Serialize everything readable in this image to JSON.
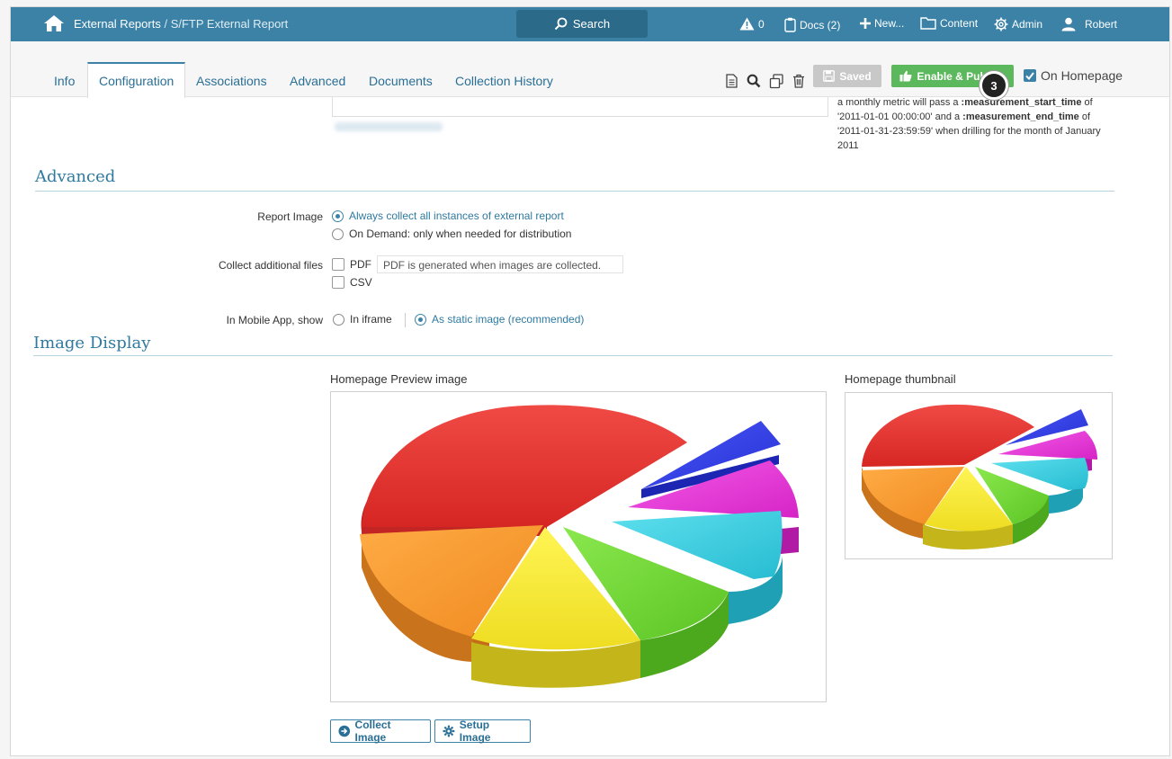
{
  "topbar": {
    "breadcrumb_root": "External Reports",
    "breadcrumb_sep": "/",
    "breadcrumb_current": "S/FTP External Report",
    "search_label": "Search",
    "alerts_count": "0",
    "docs_label": "Docs (2)",
    "new_label": "New...",
    "content_label": "Content",
    "admin_label": "Admin",
    "user_label": "Robert"
  },
  "tabs": {
    "info": "Info",
    "configuration": "Configuration",
    "associations": "Associations",
    "advanced": "Advanced",
    "documents": "Documents",
    "collection_history": "Collection History"
  },
  "toolbar": {
    "saved_label": "Saved",
    "publish_label": "Enable & Publish",
    "step_number": "3",
    "homepage_label": "On Homepage"
  },
  "help": {
    "t1": "a monthly metric will pass a ",
    "b1": ":measurement_start_time",
    "t2": " of '2011-01-01 00:00:00' and a ",
    "b2": ":measurement_end_time",
    "t3": " of '2011-01-31-23:59:59' when drilling for the month of January 2011"
  },
  "advanced": {
    "title": "Advanced",
    "report_image_label": "Report Image",
    "report_image_opt1": "Always collect all instances of external report",
    "report_image_opt2": "On Demand: only when needed for distribution",
    "collect_files_label": "Collect additional files",
    "pdf_label": "PDF",
    "pdf_hint": "PDF is generated when images are collected.",
    "csv_label": "CSV",
    "mobile_label": "In Mobile App, show",
    "mobile_opt1": "In iframe",
    "mobile_opt2": "As static image (recommended)"
  },
  "image_display": {
    "title": "Image Display",
    "preview_label": "Homepage Preview image",
    "thumbnail_label": "Homepage thumbnail",
    "collect_button": "Collect Image",
    "setup_button": "Setup Image"
  },
  "colors": {
    "topbar": "#3b82a6",
    "accent": "#2f7aa0",
    "publish": "#5cb85c",
    "pie_red": "#e8312f",
    "pie_orange": "#f7952b",
    "pie_yellow": "#f6e92c",
    "pie_green": "#6fd631",
    "pie_cyan": "#35cde0",
    "pie_magenta": "#e62fd7",
    "pie_blue": "#2d39e8"
  }
}
